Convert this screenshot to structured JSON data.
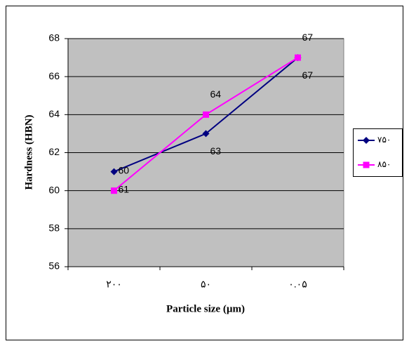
{
  "chart_data": {
    "type": "line",
    "x_label": "Particle size (µm)",
    "y_label": "Hardness (HBN)",
    "categories": [
      "۲۰۰",
      "۵۰",
      "۰.۰۵"
    ],
    "series": [
      {
        "name": "۷۵۰",
        "color": "#000080",
        "marker": "diamond",
        "values": [
          61,
          63,
          67
        ]
      },
      {
        "name": "۸۵۰",
        "color": "#ff00ff",
        "marker": "square",
        "values": [
          60,
          64,
          67
        ]
      }
    ],
    "ylim": [
      56,
      68
    ],
    "yticks": [
      56,
      58,
      60,
      62,
      64,
      66,
      68
    ],
    "grid": true,
    "legend": "right",
    "plot_background": "#c0c0c0"
  }
}
